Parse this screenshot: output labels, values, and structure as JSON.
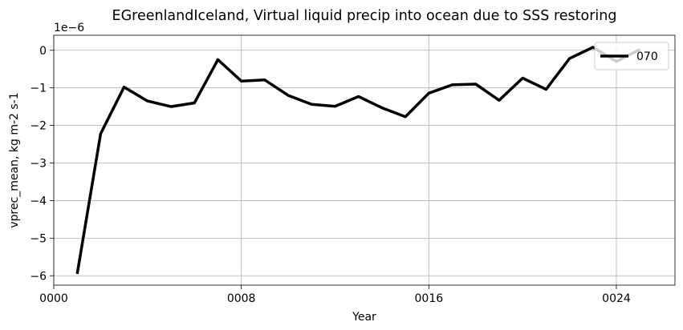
{
  "chart_data": {
    "type": "line",
    "title": "EGreenlandIceland, Virtual liquid precip into ocean due to SSS restoring",
    "xlabel": "Year",
    "ylabel": "vprec_mean, kg m-2 s-1",
    "y_offset_label": "1e−6",
    "xlim": [
      0,
      26.5
    ],
    "ylim": [
      -6.25,
      0.4
    ],
    "x_ticks": [
      0,
      8,
      16,
      24
    ],
    "x_tick_labels": [
      "0000",
      "0008",
      "0016",
      "0024"
    ],
    "y_ticks": [
      0,
      -1,
      -2,
      -3,
      -4,
      -5,
      -6
    ],
    "y_tick_labels": [
      "0",
      "−1",
      "−2",
      "−3",
      "−4",
      "−5",
      "−6"
    ],
    "grid": true,
    "legend_position": "top-right",
    "series": [
      {
        "name": "070",
        "color": "#000000",
        "x": [
          1,
          2,
          3,
          4,
          5,
          6,
          7,
          8,
          9,
          10,
          11,
          12,
          13,
          14,
          15,
          16,
          17,
          18,
          19,
          20,
          21,
          22,
          23,
          24,
          25
        ],
        "values": [
          -5.95,
          -2.22,
          -0.98,
          -1.35,
          -1.5,
          -1.4,
          -0.25,
          -0.82,
          -0.79,
          -1.2,
          -1.44,
          -1.49,
          -1.23,
          -1.53,
          -1.77,
          -1.14,
          -0.92,
          -0.9,
          -1.33,
          -0.74,
          -1.04,
          -0.22,
          0.08,
          -0.3,
          0.02
        ]
      }
    ]
  }
}
